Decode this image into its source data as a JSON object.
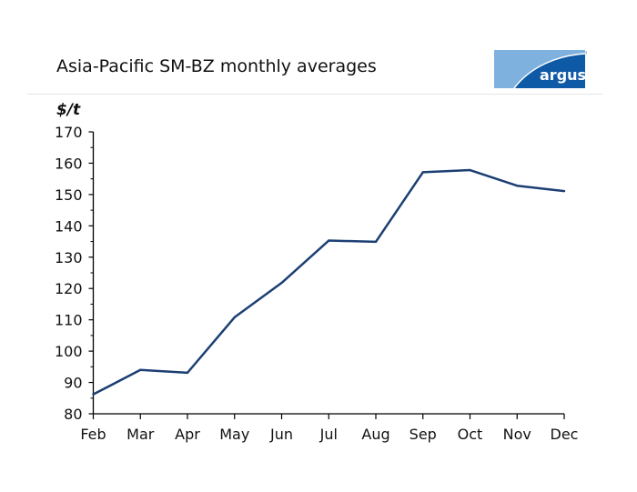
{
  "chart_data": {
    "type": "line",
    "title": "Asia-Pacific SM-BZ monthly averages",
    "ylabel": "$/t",
    "xlabel": "",
    "categories": [
      "Feb",
      "Mar",
      "Apr",
      "May",
      "Jun",
      "Jul",
      "Aug",
      "Sep",
      "Oct",
      "Nov",
      "Dec"
    ],
    "series": [
      {
        "values": [
          86.2,
          94.0,
          93.1,
          110.8,
          121.8,
          135.3,
          134.9,
          157.1,
          157.8,
          152.8,
          151.1
        ],
        "color": "#1c3f73"
      }
    ],
    "ylim": [
      80,
      170
    ],
    "yticks": [
      80,
      90,
      100,
      110,
      120,
      130,
      140,
      150,
      160,
      170
    ],
    "grid": false,
    "legend": "none"
  },
  "logo": {
    "text": "argus",
    "color_dark": "#0f5aa6",
    "color_light": "#7fb1de"
  }
}
